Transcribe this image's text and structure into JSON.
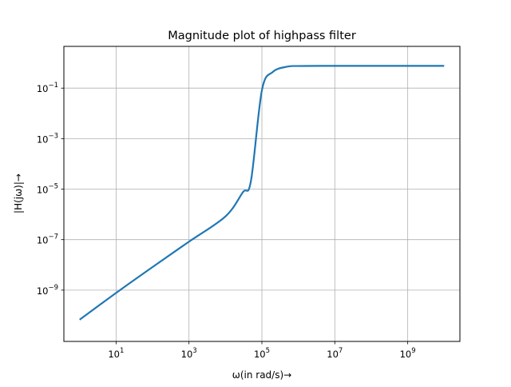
{
  "chart_data": {
    "type": "line",
    "title": "Magnitude plot of highpass filter",
    "xlabel": "ω(in rad/s)→",
    "ylabel": "|H(jω)|→",
    "xscale": "log",
    "yscale": "log",
    "xlim": [
      0.37,
      27000000000
    ],
    "ylim": [
      9.3e-12,
      4.5
    ],
    "grid": true,
    "legend": "none",
    "x_ticks": [
      {
        "base": "10",
        "exp": "1",
        "value": 10
      },
      {
        "base": "10",
        "exp": "3",
        "value": 1000
      },
      {
        "base": "10",
        "exp": "5",
        "value": 100000
      },
      {
        "base": "10",
        "exp": "7",
        "value": 10000000
      },
      {
        "base": "10",
        "exp": "9",
        "value": 1000000000
      }
    ],
    "y_ticks": [
      {
        "base": "10",
        "exp": "−1",
        "value": 0.1
      },
      {
        "base": "10",
        "exp": "−3",
        "value": 0.001
      },
      {
        "base": "10",
        "exp": "−5",
        "value": 1e-05
      },
      {
        "base": "10",
        "exp": "−7",
        "value": 1e-07
      },
      {
        "base": "10",
        "exp": "−9",
        "value": 1e-09
      }
    ],
    "series": [
      {
        "color": "#1f77b4",
        "x": [
          1,
          10,
          100,
          1000,
          10000,
          30000,
          50000,
          100000,
          200000,
          500000,
          1000000,
          10000000,
          100000000,
          1000000000,
          10000000000
        ],
        "y": [
          6.75e-11,
          7.75e-10,
          8.2e-09,
          8.3e-08,
          8.3e-07,
          7.5e-06,
          2.09e-05,
          0.082,
          0.44,
          0.71,
          0.752,
          0.76,
          0.76,
          0.76,
          0.76
        ]
      }
    ]
  }
}
